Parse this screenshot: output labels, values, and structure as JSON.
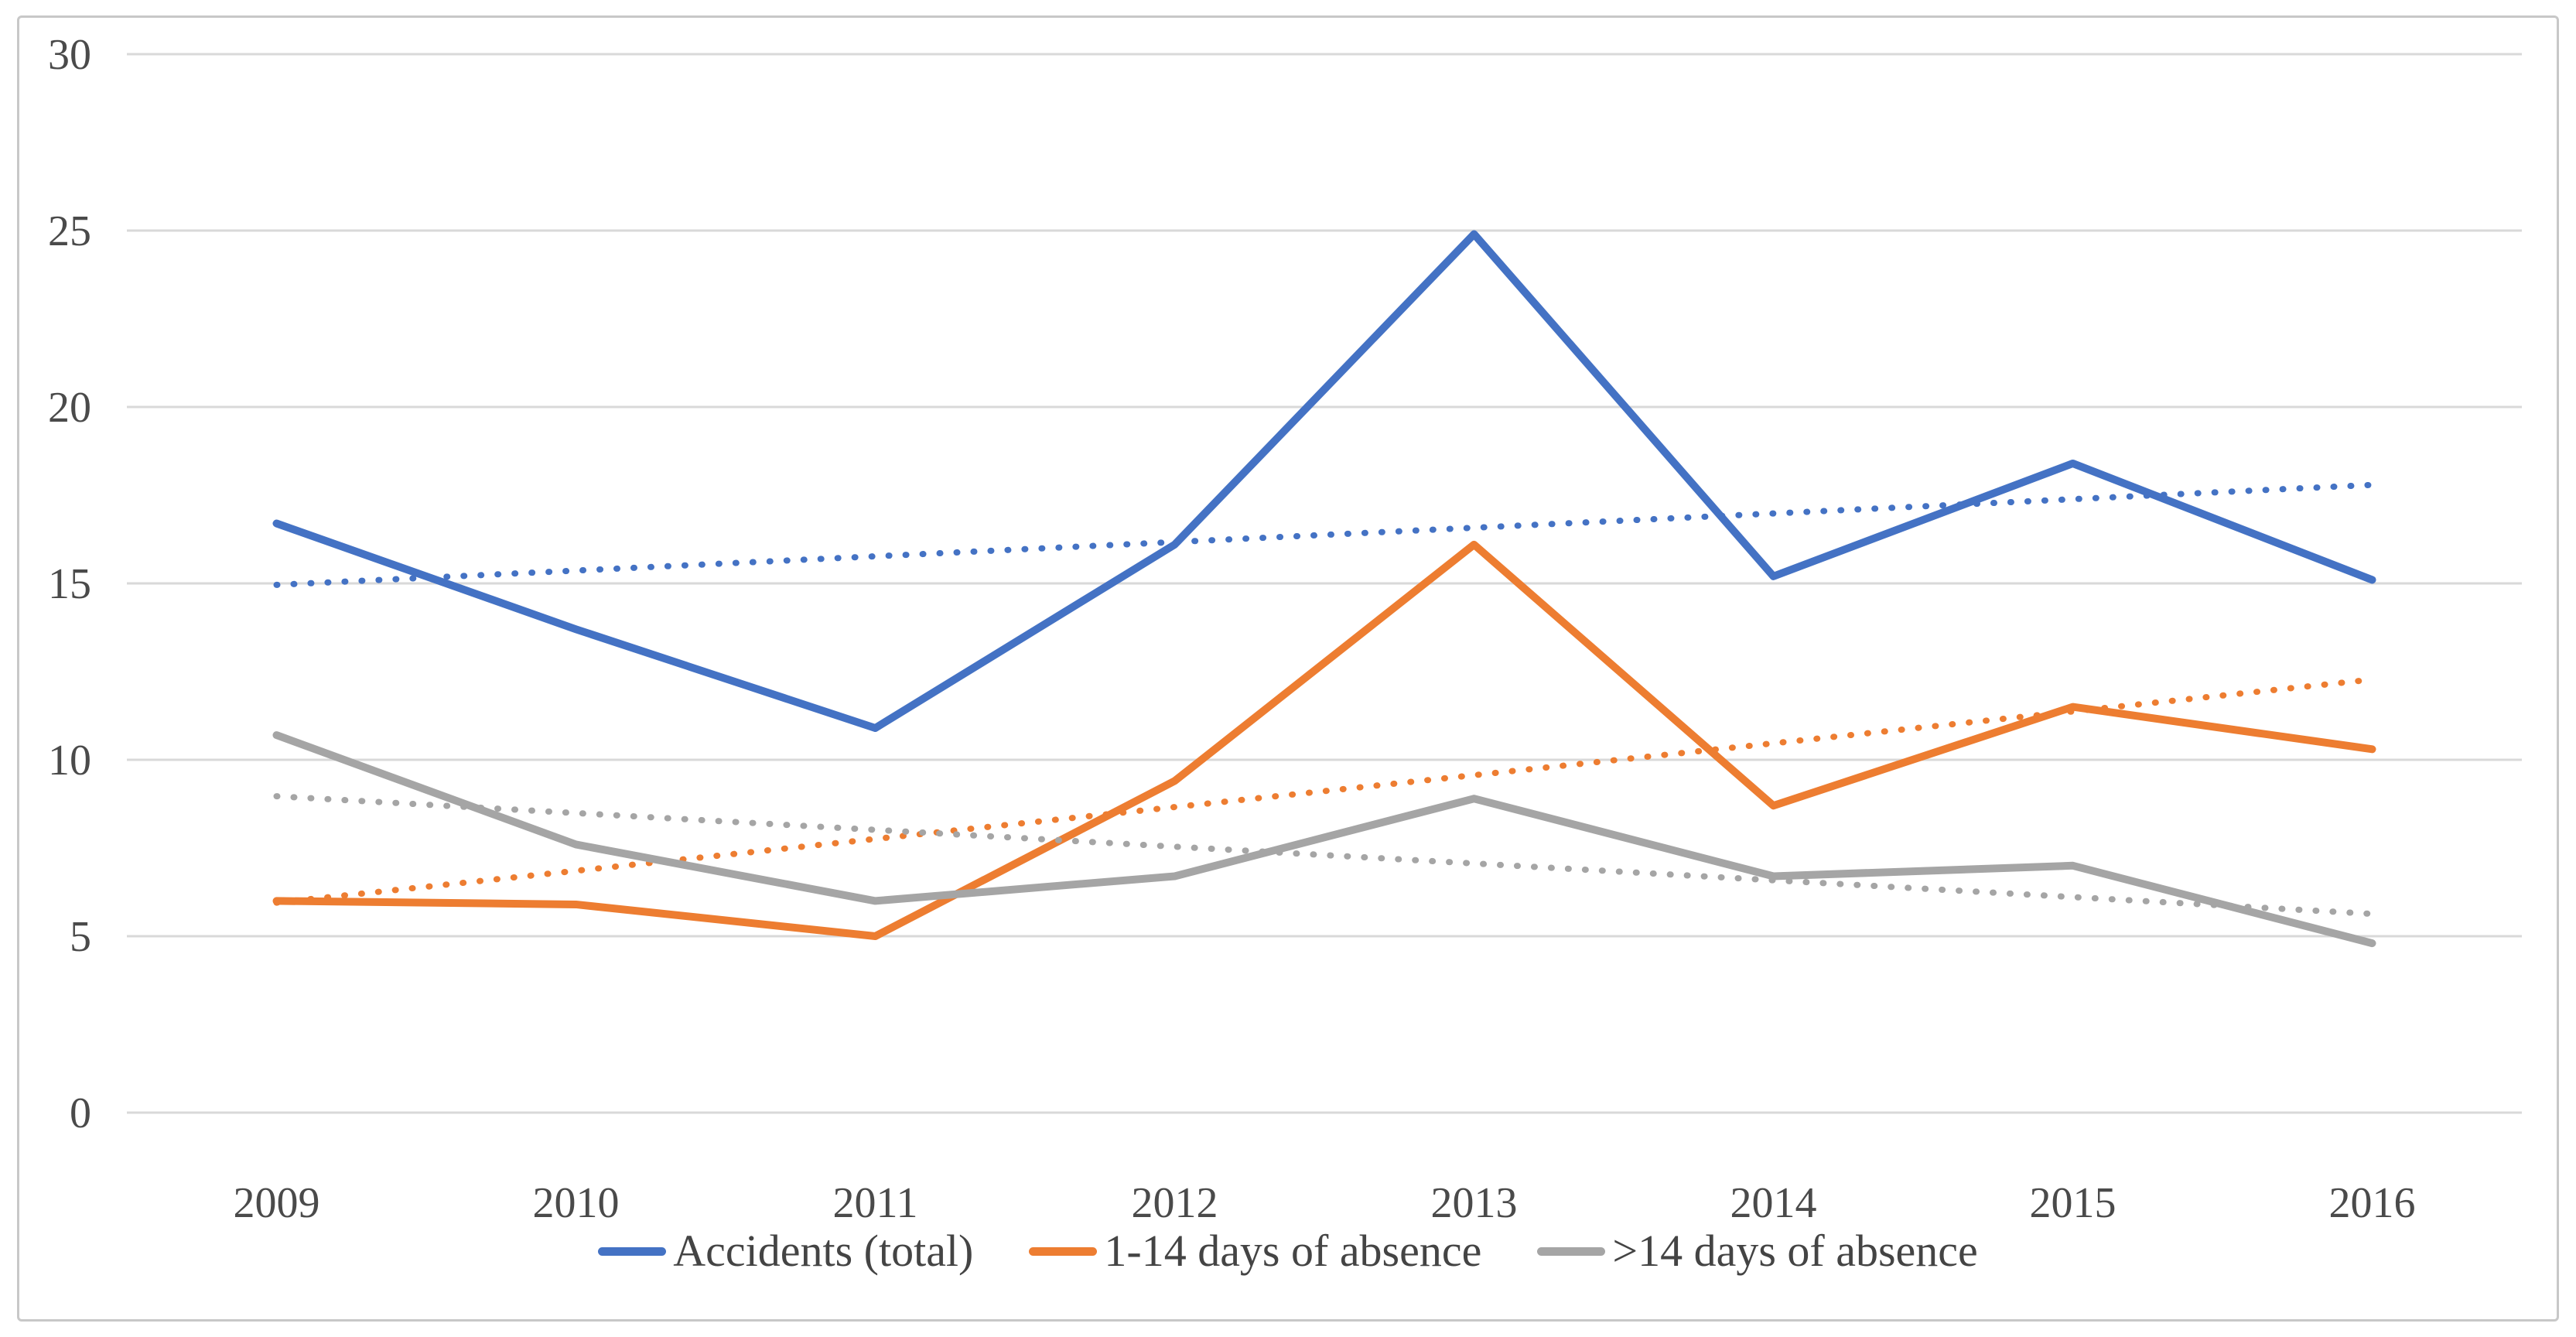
{
  "figure": {
    "kind": "line-chart-figure"
  },
  "chart_data": {
    "type": "line",
    "title": "",
    "xlabel": "",
    "ylabel": "",
    "categories": [
      "2009",
      "2010",
      "2011",
      "2012",
      "2013",
      "2014",
      "2015",
      "2016"
    ],
    "series": [
      {
        "name": "Accidents (total)",
        "color": "#4472C4",
        "style": "solid",
        "trendline": true,
        "values": [
          16.7,
          13.7,
          10.9,
          16.1,
          24.9,
          15.2,
          18.4,
          15.1
        ]
      },
      {
        "name": "1-14 days of absence",
        "color": "#ED7D31",
        "style": "solid",
        "trendline": true,
        "values": [
          6.0,
          5.9,
          5.0,
          9.4,
          16.1,
          8.7,
          11.5,
          10.3
        ]
      },
      {
        "name": ">14 days of absence",
        "color": "#A5A5A5",
        "style": "solid",
        "trendline": true,
        "values": [
          10.7,
          7.6,
          6.0,
          6.7,
          8.9,
          6.7,
          7.0,
          4.8
        ]
      }
    ],
    "trendline_style": "dotted",
    "y_axis": {
      "min": 0,
      "max": 30,
      "tick_step": 5,
      "ticks": [
        "0",
        "5",
        "10",
        "15",
        "20",
        "25",
        "30"
      ]
    },
    "grid": true,
    "legend_position": "bottom"
  },
  "styles": {
    "grid_color": "#d9d9d9",
    "axis_text_color": "#4a4a4a",
    "legend_text_color": "#444444",
    "border_color": "#c8c8c8",
    "background": "#ffffff"
  }
}
